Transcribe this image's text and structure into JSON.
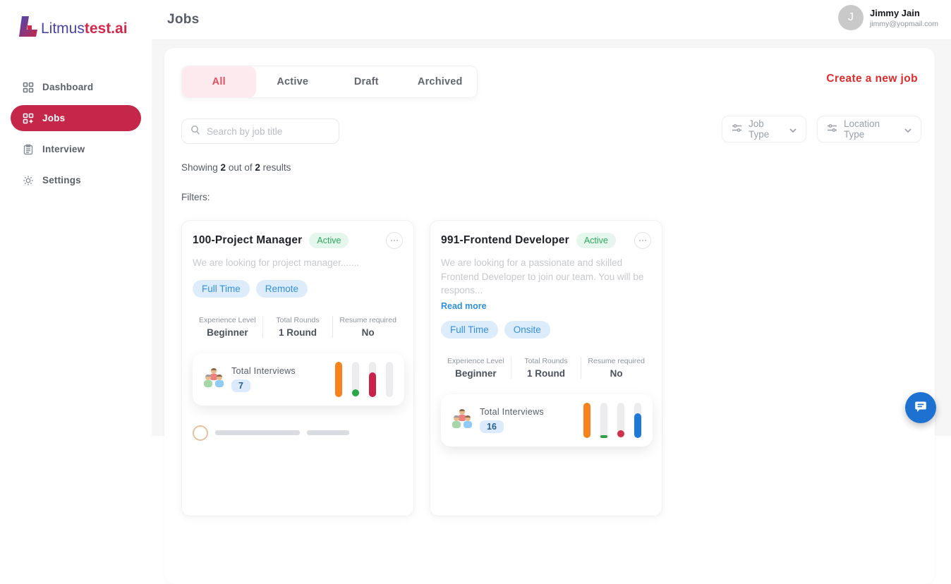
{
  "header": {
    "title": "Jobs",
    "user": {
      "initial": "J",
      "name": "Jimmy Jain",
      "email": "jimmy@yopmail.com"
    }
  },
  "sidebar": {
    "logo": {
      "part1": "Litmus",
      "part2": "test.ai"
    },
    "items": [
      {
        "label": "Dashboard",
        "icon": "grid-icon",
        "active": false
      },
      {
        "label": "Jobs",
        "icon": "grid-plus-icon",
        "active": true
      },
      {
        "label": "Interview",
        "icon": "clipboard-icon",
        "active": false
      },
      {
        "label": "Settings",
        "icon": "gear-icon",
        "active": false
      }
    ]
  },
  "toolbar": {
    "tabs": [
      {
        "label": "All",
        "active": true
      },
      {
        "label": "Active",
        "active": false
      },
      {
        "label": "Draft",
        "active": false
      },
      {
        "label": "Archived",
        "active": false
      }
    ],
    "create_label": "Create a new job",
    "search_placeholder": "Search by job title",
    "filters": [
      {
        "label": "Job Type"
      },
      {
        "label": "Location Type"
      }
    ]
  },
  "results": {
    "prefix": "Showing ",
    "shown": "2",
    "mid": " out of ",
    "total": "2",
    "suffix": " results",
    "filters_label": "Filters:"
  },
  "cards": [
    {
      "title": "100-Project Manager",
      "status": "Active",
      "description": "We are looking for project manager.......",
      "tags": [
        "Full Time",
        "Remote"
      ],
      "stats": [
        {
          "label": "Experience Level",
          "value": "Beginner"
        },
        {
          "label": "Total Rounds",
          "value": "1 Round"
        },
        {
          "label": "Resume required",
          "value": "No"
        }
      ],
      "interviews": {
        "label": "Total Interviews",
        "count": "7",
        "bars": [
          {
            "style": "full",
            "color": "#f8821f"
          },
          {
            "style": "dot",
            "color": "#28a745"
          },
          {
            "style": "segment",
            "color": "#c9234a",
            "height": "70%"
          },
          {
            "style": "empty"
          }
        ]
      }
    },
    {
      "title": "991-Frontend Developer",
      "status": "Active",
      "description": "We are looking for a passionate and skilled Frontend Developer to join our team. You will be respons...",
      "read_more": "Read more",
      "tags": [
        "Full Time",
        "Onsite"
      ],
      "stats": [
        {
          "label": "Experience Level",
          "value": "Beginner"
        },
        {
          "label": "Total Rounds",
          "value": "1 Round"
        },
        {
          "label": "Resume required",
          "value": "No"
        }
      ],
      "interviews": {
        "label": "Total Interviews",
        "count": "16",
        "bars": [
          {
            "style": "full",
            "color": "#f8821f"
          },
          {
            "style": "line",
            "color": "#2f9e44"
          },
          {
            "style": "dot",
            "color": "#d03049"
          },
          {
            "style": "segment",
            "color": "#1d7ad8",
            "height": "70%"
          }
        ]
      }
    }
  ],
  "colors": {
    "brand_crimson": "#c5274a",
    "logo_purple": "#4a44a5",
    "logo_red": "#d2294b",
    "create_red": "#dd2b2b",
    "tab_active_text": "#e05263",
    "tab_active_bg": "#fdeaee",
    "status_green_text": "#2eaa5e",
    "status_green_bg": "#e5f6ec",
    "tag_blue_text": "#3390dc",
    "tag_blue_bg": "#dcecfa",
    "count_badge_bg": "#dbeafc",
    "count_badge_text": "#2b5d8c",
    "bar_orange": "#f8821f",
    "bar_green": "#28a745",
    "bar_crimson": "#c9234a",
    "bar_blue": "#1d7ad8",
    "bar_track": "#ececee",
    "chat_blue": "#1c71d1",
    "content_bg": "#f6f6f7"
  }
}
